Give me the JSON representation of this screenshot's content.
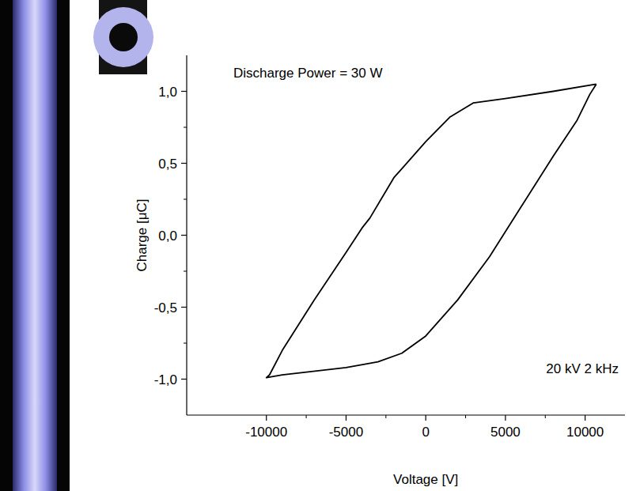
{
  "chart_data": {
    "type": "line",
    "x_label": "Voltage [V]",
    "y_label": "Charge [μC]",
    "annotations": [
      "Discharge Power = 30 W",
      "20 kV 2 kHz"
    ],
    "x": [
      10700,
      8000,
      5000,
      3000,
      1500,
      0,
      -2000,
      -3500,
      -4000,
      -5000,
      -7000,
      -9000,
      -9800,
      -10000,
      -9000,
      -5000,
      -3000,
      -1500,
      0,
      2000,
      4000,
      6000,
      8000,
      9500,
      10300,
      10700
    ],
    "values": [
      1.05,
      1.0,
      0.95,
      0.92,
      0.82,
      0.65,
      0.4,
      0.12,
      0.05,
      -0.12,
      -0.45,
      -0.8,
      -0.97,
      -0.99,
      -0.97,
      -0.92,
      -0.88,
      -0.82,
      -0.7,
      -0.45,
      -0.15,
      0.2,
      0.55,
      0.8,
      0.98,
      1.05
    ],
    "color": "#000000",
    "xlim": [
      -15000,
      12500
    ],
    "ylim": [
      -1.25,
      1.25
    ],
    "xticks": [
      -10000,
      -5000,
      0,
      5000,
      10000
    ],
    "yticks": [
      {
        "value": -1,
        "label": "-1,0"
      },
      {
        "value": -0.5,
        "label": "-0,5"
      },
      {
        "value": 0,
        "label": "0,0"
      },
      {
        "value": 0.5,
        "label": "0,5"
      },
      {
        "value": 1,
        "label": "1,0"
      }
    ],
    "grid": false
  }
}
